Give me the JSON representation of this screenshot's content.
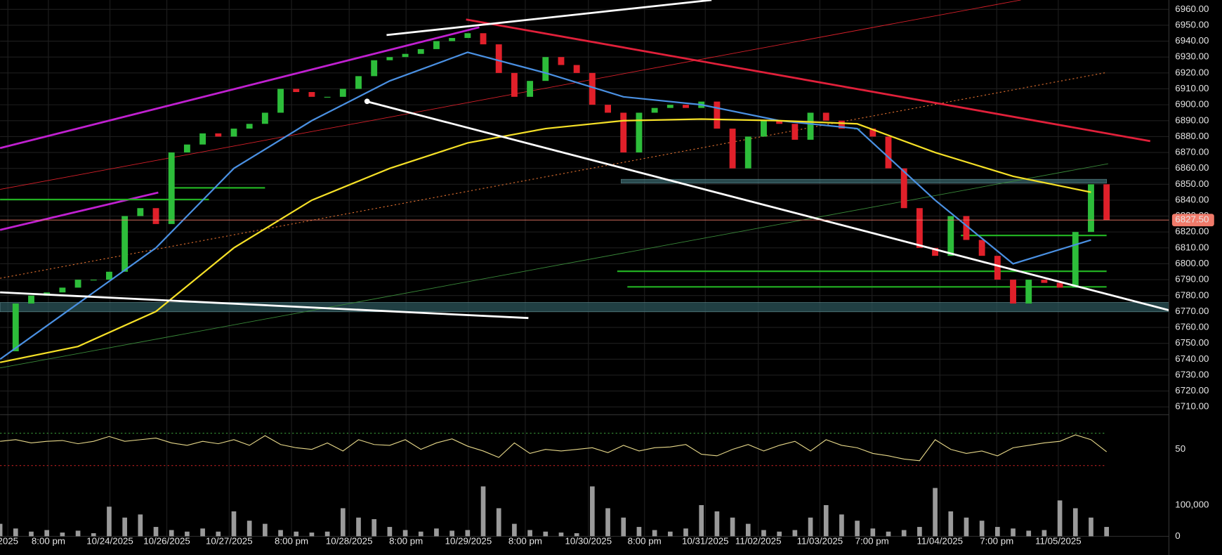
{
  "chart_data": {
    "type": "candlestick",
    "xlim": [
      0,
      75
    ],
    "xticks": [
      {
        "value": 0.5,
        "label": "2025"
      },
      {
        "value": 3.1,
        "label": "8:00 pm"
      },
      {
        "value": 7.05,
        "label": "10/24/2025"
      },
      {
        "value": 10.7,
        "label": "10/26/2025"
      },
      {
        "value": 14.7,
        "label": "10/27/2025"
      },
      {
        "value": 18.7,
        "label": "8:00 pm"
      },
      {
        "value": 22.4,
        "label": "10/28/2025"
      },
      {
        "value": 26.05,
        "label": "8:00 pm"
      },
      {
        "value": 30.05,
        "label": "10/29/2025"
      },
      {
        "value": 33.7,
        "label": "8:00 pm"
      },
      {
        "value": 37.75,
        "label": "10/30/2025"
      },
      {
        "value": 41.35,
        "label": "8:00 pm"
      },
      {
        "value": 45.25,
        "label": "10/31/2025"
      },
      {
        "value": 48.65,
        "label": "11/02/2025"
      },
      {
        "value": 52.6,
        "label": "11/03/2025"
      },
      {
        "value": 55.95,
        "label": "7:00 pm"
      },
      {
        "value": 60.3,
        "label": "11/04/2025"
      },
      {
        "value": 63.95,
        "label": "7:00 pm"
      },
      {
        "value": 67.9,
        "label": "11/05/2025"
      }
    ],
    "ylim": [
      6710,
      6960
    ],
    "yticks": [
      {
        "value": 6710,
        "label": "6710.00"
      },
      {
        "value": 6720,
        "label": "6720.00"
      },
      {
        "value": 6730,
        "label": "6730.00"
      },
      {
        "value": 6740,
        "label": "6740.00"
      },
      {
        "value": 6750,
        "label": "6750.00"
      },
      {
        "value": 6760,
        "label": "6760.00"
      },
      {
        "value": 6770,
        "label": "6770.00"
      },
      {
        "value": 6780,
        "label": "6780.00"
      },
      {
        "value": 6790,
        "label": "6790.00"
      },
      {
        "value": 6800,
        "label": "6800.00"
      },
      {
        "value": 6810,
        "label": "6810.00"
      },
      {
        "value": 6820,
        "label": "6820.00"
      },
      {
        "value": 6830,
        "label": "6830.00"
      },
      {
        "value": 6840,
        "label": "6840.00"
      },
      {
        "value": 6850,
        "label": "6850.00"
      },
      {
        "value": 6860,
        "label": "6860.00"
      },
      {
        "value": 6870,
        "label": "6870.00"
      },
      {
        "value": 6880,
        "label": "6880.00"
      },
      {
        "value": 6890,
        "label": "6890.00"
      },
      {
        "value": 6900,
        "label": "6900.00"
      },
      {
        "value": 6910,
        "label": "6910.00"
      },
      {
        "value": 6920,
        "label": "6920.00"
      },
      {
        "value": 6930,
        "label": "6930.00"
      },
      {
        "value": 6940,
        "label": "6940.00"
      },
      {
        "value": 6950,
        "label": "6950.00"
      },
      {
        "value": 6960,
        "label": "6960.00"
      }
    ],
    "grid": true,
    "up_color": "#2dbd3a",
    "down_color": "#e0202a",
    "price": [
      6745,
      6775,
      6780,
      6782,
      6785,
      6790,
      6790,
      6795,
      6830,
      6835,
      6825,
      6870,
      6875,
      6882,
      6880,
      6885,
      6888,
      6895,
      6910,
      6908,
      6905,
      6905,
      6910,
      6918,
      6928,
      6930,
      6932,
      6935,
      6940,
      6942,
      6945,
      6938,
      6920,
      6905,
      6915,
      6930,
      6925,
      6920,
      6900,
      6895,
      6870,
      6895,
      6898,
      6900,
      6898,
      6902,
      6885,
      6860,
      6880,
      6890,
      6888,
      6878,
      6895,
      6890,
      6885,
      6885,
      6880,
      6860,
      6835,
      6810,
      6805,
      6830,
      6815,
      6805,
      6790,
      6775,
      6790,
      6788,
      6785,
      6820,
      6850,
      6827.5
    ],
    "last_price": {
      "value": 6827.5,
      "label": "6827.50"
    },
    "last_price_color": "#f07a6a",
    "series": [
      {
        "color": "#4a90e2",
        "x": [
          0,
          5,
          10,
          15,
          20,
          25,
          30,
          35,
          40,
          45,
          50,
          55,
          60,
          65,
          70
        ],
        "values": [
          6740,
          6775,
          6810,
          6860,
          6890,
          6915,
          6933,
          6920,
          6905,
          6900,
          6890,
          6885,
          6840,
          6800,
          6815
        ]
      },
      {
        "color": "#f5e027",
        "x": [
          0,
          5,
          10,
          15,
          20,
          25,
          30,
          35,
          40,
          45,
          50,
          55,
          60,
          65,
          70
        ],
        "values": [
          6738,
          6748,
          6770,
          6810,
          6840,
          6860,
          6876,
          6885,
          6890,
          6891,
          6890,
          6888,
          6870,
          6855,
          6845
        ]
      }
    ],
    "rsi": {
      "ylim": [
        8,
        92
      ],
      "yticks": [
        50
      ],
      "levels": [
        70,
        30
      ],
      "color": "#e8d98a",
      "values": [
        60,
        62,
        58,
        60,
        61,
        57,
        60,
        66,
        60,
        62,
        64,
        58,
        55,
        60,
        57,
        62,
        55,
        67,
        56,
        52,
        50,
        58,
        48,
        62,
        56,
        55,
        62,
        50,
        58,
        63,
        54,
        48,
        40,
        58,
        45,
        50,
        48,
        50,
        52,
        46,
        55,
        48,
        52,
        53,
        56,
        44,
        42,
        50,
        56,
        48,
        55,
        60,
        48,
        62,
        55,
        52,
        45,
        42,
        38,
        36,
        62,
        50,
        45,
        48,
        42,
        52,
        55,
        58,
        60,
        68,
        62,
        47
      ]
    },
    "volume": {
      "ylim": [
        0,
        170000
      ],
      "yticks": [
        {
          "value": 100000,
          "label": "100,000"
        },
        0
      ],
      "color": "#9a9a9a",
      "values": [
        40000,
        25000,
        15000,
        20000,
        12000,
        18000,
        10000,
        95000,
        60000,
        70000,
        30000,
        20000,
        15000,
        25000,
        15000,
        80000,
        50000,
        40000,
        20000,
        15000,
        12000,
        15000,
        90000,
        60000,
        55000,
        30000,
        20000,
        15000,
        25000,
        18000,
        20000,
        160000,
        90000,
        40000,
        20000,
        15000,
        12000,
        10000,
        160000,
        90000,
        60000,
        30000,
        20000,
        15000,
        25000,
        100000,
        80000,
        60000,
        40000,
        20000,
        15000,
        20000,
        60000,
        100000,
        70000,
        50000,
        25000,
        15000,
        20000,
        30000,
        155000,
        80000,
        60000,
        50000,
        30000,
        25000,
        18000,
        20000,
        115000,
        90000,
        60000,
        30000
      ]
    }
  }
}
